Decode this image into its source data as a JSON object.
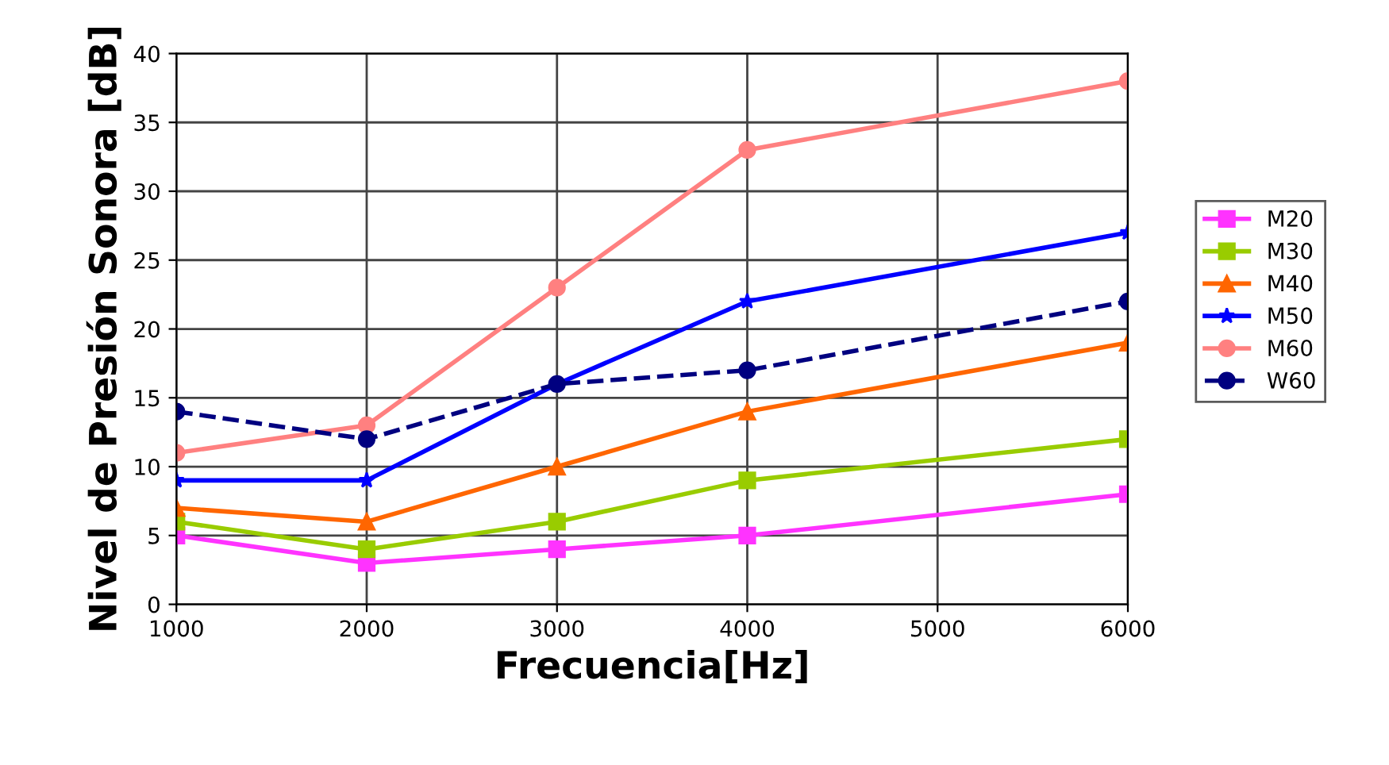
{
  "chart_data": {
    "type": "line",
    "xlabel": "Frecuencia[Hz]",
    "ylabel": "Nivel de Presión Sonora [dB]",
    "x": [
      1000,
      2000,
      3000,
      4000,
      6000
    ],
    "xlim": [
      1000,
      6000
    ],
    "xticks": [
      1000,
      2000,
      3000,
      4000,
      5000,
      6000
    ],
    "ylim": [
      0,
      40
    ],
    "yticks": [
      0,
      5,
      10,
      15,
      20,
      25,
      30,
      35,
      40
    ],
    "grid": true,
    "legend": "right",
    "series": [
      {
        "name": "M20",
        "color": "#ff33ff",
        "marker": "square",
        "line_style": "solid",
        "values": [
          5,
          3,
          4,
          5,
          8
        ]
      },
      {
        "name": "M30",
        "color": "#99cc00",
        "marker": "square",
        "line_style": "solid",
        "values": [
          6,
          4,
          6,
          9,
          12
        ]
      },
      {
        "name": "M40",
        "color": "#ff6600",
        "marker": "triangle",
        "line_style": "solid",
        "values": [
          7,
          6,
          10,
          14,
          19
        ]
      },
      {
        "name": "M50",
        "color": "#0000ff",
        "marker": "star",
        "line_style": "solid",
        "values": [
          9,
          9,
          16,
          22,
          27
        ]
      },
      {
        "name": "M60",
        "color": "#ff8080",
        "marker": "circle",
        "line_style": "solid",
        "values": [
          11,
          13,
          23,
          33,
          38
        ]
      },
      {
        "name": "W60",
        "color": "#000080",
        "marker": "circle",
        "line_style": "dashed",
        "values": [
          14,
          12,
          16,
          17,
          22
        ]
      }
    ]
  }
}
